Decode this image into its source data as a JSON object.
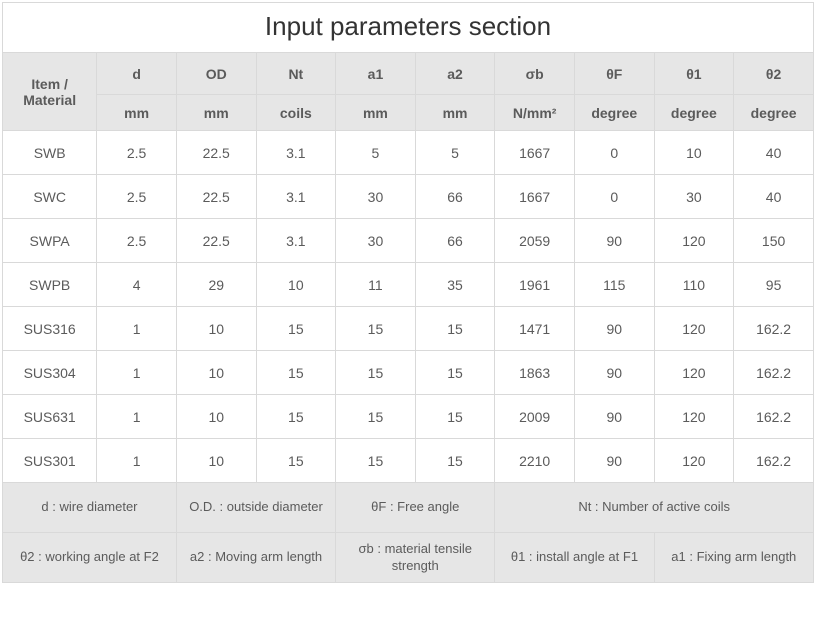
{
  "title": "Input parameters section",
  "columns": [
    {
      "key": "item",
      "label": "Item / Material",
      "unit": ""
    },
    {
      "key": "d",
      "label": "d",
      "unit": "mm"
    },
    {
      "key": "OD",
      "label": "OD",
      "unit": "mm"
    },
    {
      "key": "Nt",
      "label": "Nt",
      "unit": "coils"
    },
    {
      "key": "a1",
      "label": "a1",
      "unit": "mm"
    },
    {
      "key": "a2",
      "label": "a2",
      "unit": "mm"
    },
    {
      "key": "sb",
      "label": "σb",
      "unit": "N/mm²"
    },
    {
      "key": "tF",
      "label": "θF",
      "unit": "degree"
    },
    {
      "key": "t1",
      "label": "θ1",
      "unit": "degree"
    },
    {
      "key": "t2",
      "label": "θ2",
      "unit": "degree"
    }
  ],
  "rows": [
    {
      "item": "SWB",
      "d": "2.5",
      "OD": "22.5",
      "Nt": "3.1",
      "a1": "5",
      "a2": "5",
      "sb": "1667",
      "tF": "0",
      "t1": "10",
      "t2": "40"
    },
    {
      "item": "SWC",
      "d": "2.5",
      "OD": "22.5",
      "Nt": "3.1",
      "a1": "30",
      "a2": "66",
      "sb": "1667",
      "tF": "0",
      "t1": "30",
      "t2": "40"
    },
    {
      "item": "SWPA",
      "d": "2.5",
      "OD": "22.5",
      "Nt": "3.1",
      "a1": "30",
      "a2": "66",
      "sb": "2059",
      "tF": "90",
      "t1": "120",
      "t2": "150"
    },
    {
      "item": "SWPB",
      "d": "4",
      "OD": "29",
      "Nt": "10",
      "a1": "11",
      "a2": "35",
      "sb": "1961",
      "tF": "115",
      "t1": "110",
      "t2": "95"
    },
    {
      "item": "SUS316",
      "d": "1",
      "OD": "10",
      "Nt": "15",
      "a1": "15",
      "a2": "15",
      "sb": "1471",
      "tF": "90",
      "t1": "120",
      "t2": "162.2"
    },
    {
      "item": "SUS304",
      "d": "1",
      "OD": "10",
      "Nt": "15",
      "a1": "15",
      "a2": "15",
      "sb": "1863",
      "tF": "90",
      "t1": "120",
      "t2": "162.2"
    },
    {
      "item": "SUS631",
      "d": "1",
      "OD": "10",
      "Nt": "15",
      "a1": "15",
      "a2": "15",
      "sb": "2009",
      "tF": "90",
      "t1": "120",
      "t2": "162.2"
    },
    {
      "item": "SUS301",
      "d": "1",
      "OD": "10",
      "Nt": "15",
      "a1": "15",
      "a2": "15",
      "sb": "2210",
      "tF": "90",
      "t1": "120",
      "t2": "162.2"
    }
  ],
  "legend": {
    "row1": [
      {
        "span": 2,
        "text": "d : wire diameter"
      },
      {
        "span": 2,
        "text": "O.D. : outside diameter"
      },
      {
        "span": 2,
        "text": "θF : Free angle"
      },
      {
        "span": 4,
        "text": "Nt : Number of active coils"
      }
    ],
    "row2": [
      {
        "span": 2,
        "text": "θ2 : working angle at F2"
      },
      {
        "span": 2,
        "text": "a2 : Moving arm length"
      },
      {
        "span": 2,
        "text": "σb : material tensile strength"
      },
      {
        "span": 2,
        "text": "θ1 : install angle at F1"
      },
      {
        "span": 2,
        "text": "a1 : Fixing arm length"
      }
    ]
  },
  "colors": {
    "border": "#d9d9d9",
    "header_bg": "#e6e6e6",
    "text": "#5b5b5b",
    "title_text": "#333333",
    "row_bg": "#ffffff"
  }
}
